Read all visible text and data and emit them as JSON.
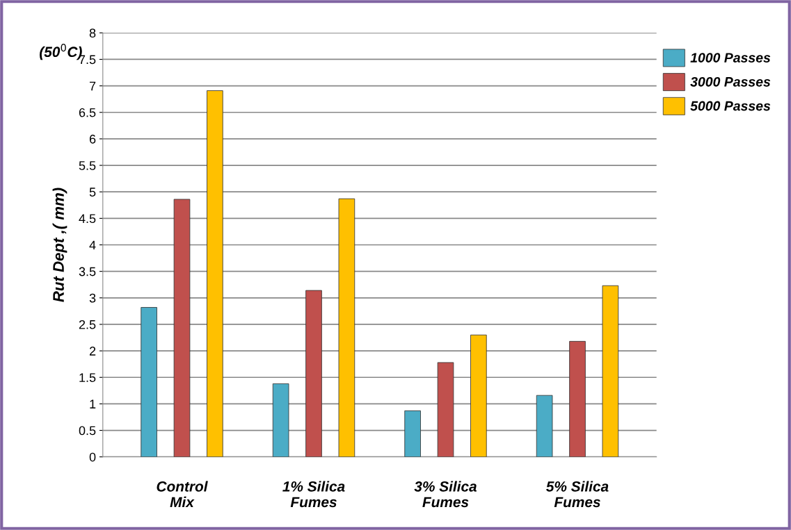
{
  "chart_data": {
    "type": "bar",
    "ylabel": "Rut Dept ,( mm)",
    "categories": [
      "Control\nMix",
      "1% Silica\nFumes",
      "3% Silica\nFumes",
      "5% Silica\nFumes"
    ],
    "series": [
      {
        "name": "1000 Passes",
        "color": "#4bacc6",
        "values": [
          2.82,
          1.38,
          0.87,
          1.16
        ]
      },
      {
        "name": "3000 Passes",
        "color": "#c0504d",
        "values": [
          4.86,
          3.14,
          1.78,
          2.18
        ]
      },
      {
        "name": "5000 Passes",
        "color": "#ffc000",
        "values": [
          6.91,
          4.87,
          2.3,
          3.23
        ]
      }
    ],
    "annotations": [
      "(50$^{0}$C)"
    ],
    "ylim": [
      0,
      8
    ],
    "yticks": [
      0,
      0.5,
      1,
      1.5,
      2,
      2.5,
      3,
      3.5,
      4,
      4.5,
      5,
      5.5,
      6,
      6.5,
      7,
      7.5,
      8
    ],
    "grid": "y",
    "legend": "top right"
  }
}
